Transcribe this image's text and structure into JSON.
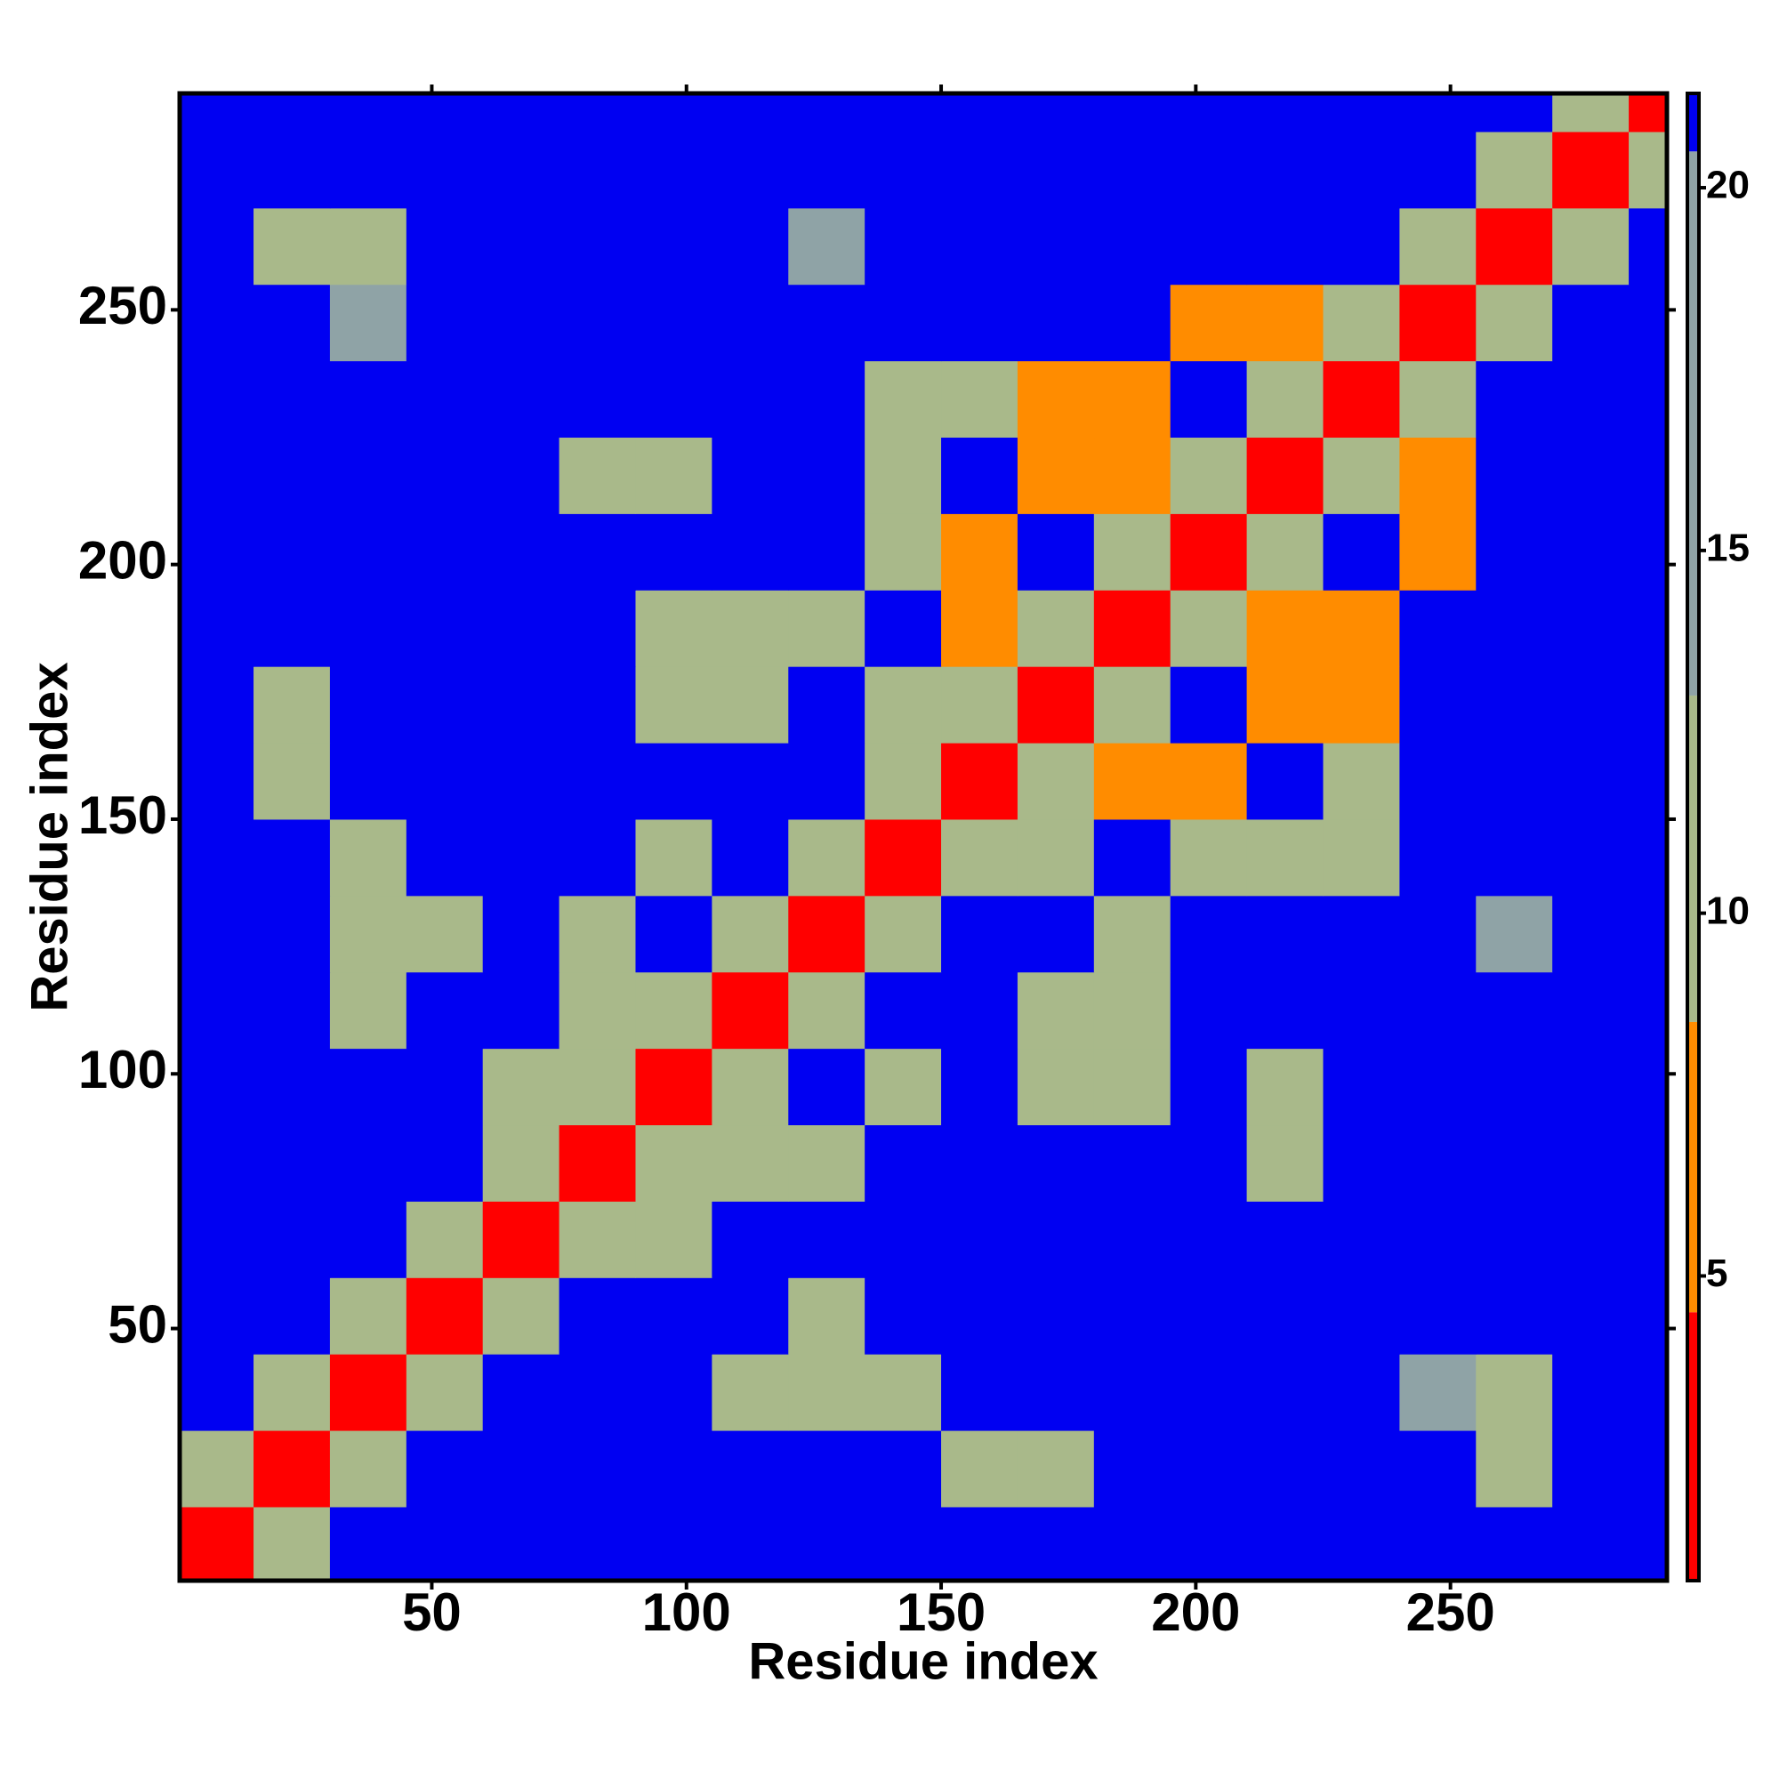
{
  "chart_data": {
    "type": "heatmap",
    "xlabel": "Residue index",
    "ylabel": "Residue index",
    "xlim": [
      0.5,
      292.5
    ],
    "ylim": [
      0.5,
      292.5
    ],
    "xticks": [
      50,
      100,
      150,
      200,
      250
    ],
    "yticks": [
      50,
      100,
      150,
      200,
      250
    ],
    "bins": [
      0.5,
      15,
      30,
      45,
      60,
      75,
      90,
      105,
      120,
      135,
      150,
      165,
      180,
      195,
      210,
      225,
      240,
      255,
      270,
      285,
      292.5
    ],
    "z": [
      [
        3,
        10,
        21,
        21,
        21,
        21,
        21,
        21,
        21,
        21,
        21,
        21,
        21,
        21,
        21,
        21,
        21,
        21,
        21,
        21
      ],
      [
        10,
        3,
        10,
        21,
        21,
        21,
        21,
        21,
        21,
        21,
        9,
        9,
        21,
        21,
        21,
        21,
        21,
        12,
        21,
        21
      ],
      [
        21,
        10,
        3,
        10,
        21,
        21,
        21,
        12,
        12,
        12,
        21,
        21,
        21,
        21,
        21,
        21,
        14,
        9,
        21,
        21
      ],
      [
        21,
        21,
        10,
        3,
        10,
        21,
        21,
        21,
        12,
        21,
        21,
        21,
        21,
        21,
        21,
        21,
        21,
        21,
        21,
        21
      ],
      [
        21,
        21,
        21,
        10,
        3,
        10,
        11,
        21,
        21,
        21,
        21,
        21,
        21,
        21,
        21,
        21,
        21,
        21,
        21,
        21
      ],
      [
        21,
        21,
        21,
        21,
        10,
        3,
        10,
        11,
        11,
        21,
        21,
        21,
        21,
        21,
        12,
        21,
        21,
        21,
        21,
        21
      ],
      [
        21,
        21,
        21,
        21,
        11,
        10,
        3,
        10,
        21,
        11,
        21,
        11,
        12,
        21,
        12,
        21,
        21,
        21,
        21,
        21
      ],
      [
        21,
        21,
        12,
        21,
        21,
        11,
        10,
        3,
        10,
        21,
        21,
        11,
        12,
        21,
        21,
        21,
        21,
        21,
        21,
        21
      ],
      [
        21,
        21,
        12,
        12,
        21,
        11,
        21,
        10,
        3,
        10,
        21,
        21,
        12,
        21,
        21,
        21,
        21,
        14,
        21,
        21
      ],
      [
        21,
        21,
        12,
        21,
        21,
        21,
        11,
        21,
        10,
        3,
        10,
        12,
        21,
        10,
        11,
        11,
        21,
        21,
        21,
        21
      ],
      [
        21,
        9,
        21,
        21,
        21,
        21,
        21,
        21,
        21,
        10,
        3,
        10,
        8,
        8,
        21,
        11,
        21,
        21,
        21,
        21
      ],
      [
        21,
        9,
        21,
        21,
        21,
        21,
        11,
        11,
        21,
        12,
        10,
        3,
        10,
        21,
        7,
        7,
        21,
        21,
        21,
        21
      ],
      [
        21,
        21,
        21,
        21,
        21,
        21,
        12,
        12,
        12,
        21,
        8,
        10,
        3,
        10,
        7,
        7,
        21,
        21,
        21,
        21
      ],
      [
        21,
        21,
        21,
        21,
        21,
        21,
        21,
        21,
        21,
        10,
        8,
        21,
        10,
        3,
        10,
        21,
        7,
        21,
        21,
        21
      ],
      [
        21,
        21,
        21,
        21,
        21,
        12,
        12,
        21,
        21,
        11,
        21,
        7,
        7,
        10,
        3,
        10,
        7,
        21,
        21,
        21
      ],
      [
        21,
        21,
        21,
        21,
        21,
        21,
        21,
        21,
        21,
        11,
        11,
        7,
        7,
        21,
        10,
        3,
        10,
        21,
        21,
        21
      ],
      [
        21,
        21,
        14,
        21,
        21,
        21,
        21,
        21,
        21,
        21,
        21,
        21,
        21,
        7,
        7,
        10,
        3,
        10,
        21,
        21
      ],
      [
        21,
        12,
        9,
        21,
        21,
        21,
        21,
        21,
        14,
        21,
        21,
        21,
        21,
        21,
        21,
        21,
        10,
        3,
        10,
        21
      ],
      [
        21,
        21,
        21,
        21,
        21,
        21,
        21,
        21,
        21,
        21,
        21,
        21,
        21,
        21,
        21,
        21,
        21,
        10,
        3,
        10
      ],
      [
        21,
        21,
        21,
        21,
        21,
        21,
        21,
        21,
        21,
        21,
        21,
        21,
        21,
        21,
        21,
        21,
        21,
        21,
        10,
        3
      ]
    ],
    "colorscale": [
      [
        0.8,
        "#ff0000"
      ],
      [
        4.5,
        "#ff8c00"
      ],
      [
        8.5,
        "#a9b98a"
      ],
      [
        13,
        "#8fa3a6"
      ],
      [
        20.5,
        "#0000f2"
      ]
    ],
    "clim": [
      0.8,
      21.3
    ],
    "cticks": [
      5,
      10,
      15,
      20
    ]
  }
}
